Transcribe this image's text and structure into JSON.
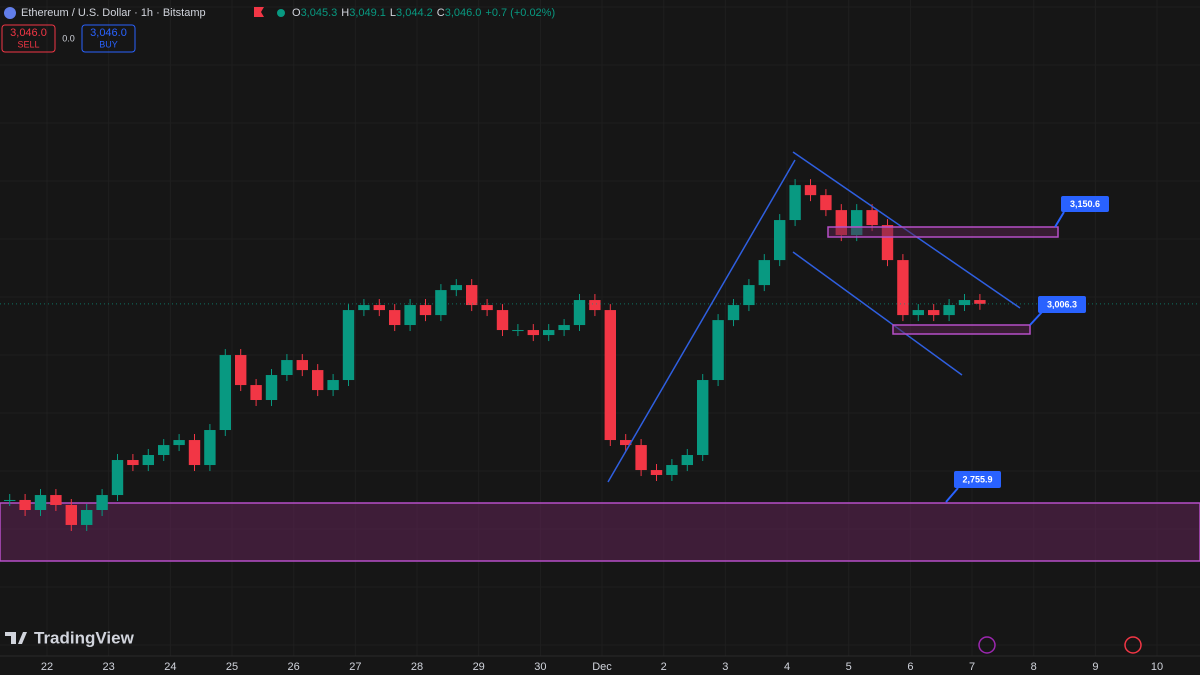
{
  "header": {
    "symbol": "Ethereum / U.S. Dollar · 1h · Bitstamp",
    "ohlc": [
      {
        "key": "O",
        "value": "3,045.3"
      },
      {
        "key": "H",
        "value": "3,049.1"
      },
      {
        "key": "L",
        "value": "3,044.2"
      },
      {
        "key": "C",
        "value": "3,046.0"
      }
    ],
    "change": "+0.7 (+0.02%)"
  },
  "trade": {
    "sell_price": "3,046.0",
    "sell": "SELL",
    "spread": "0.0",
    "buy_price": "3,046.0",
    "buy": "BUY"
  },
  "levels": [
    {
      "value": 3150.6,
      "label": "3,150.6"
    },
    {
      "value": 3006.3,
      "label": "3,006.3"
    },
    {
      "value": 2755.9,
      "label": "2,755.9"
    }
  ],
  "candles": {
    "closes": [
      2760.3,
      2745.7,
      2767.5,
      2753.0,
      2723.9,
      2745.7,
      2767.5,
      2818.5,
      2811.2,
      2825.8,
      2840.3,
      2847.6,
      2811.2,
      2862.2,
      2971.4,
      2927.7,
      2905.9,
      2942.3,
      2964.1,
      2949.5,
      2920.4,
      2935.0,
      3036.9,
      3044.2,
      3036.9,
      3015.1,
      3044.2,
      3029.6,
      3066.0,
      3073.3,
      3044.2,
      3036.9,
      3007.8,
      3007.8,
      3000.5,
      3007.8,
      3015.1,
      3051.5,
      3036.9,
      2847.6,
      2840.3,
      2803.9,
      2796.7,
      2811.2,
      2825.8,
      2935.0,
      3022.3,
      3044.2,
      3073.3,
      3109.7,
      3168.0,
      3218.9,
      3204.3,
      3182.5,
      3146.1,
      3182.5,
      3160.7,
      3109.7,
      3029.6,
      3036.9,
      3029.6,
      3044.2,
      3051.5,
      3046.0
    ]
  },
  "x_labels": [
    "22",
    "23",
    "24",
    "25",
    "26",
    "27",
    "28",
    "29",
    "30",
    "Dec",
    "2",
    "3",
    "4",
    "5",
    "6",
    "7",
    "8",
    "9",
    "10"
  ],
  "logo": "TradingView"
}
